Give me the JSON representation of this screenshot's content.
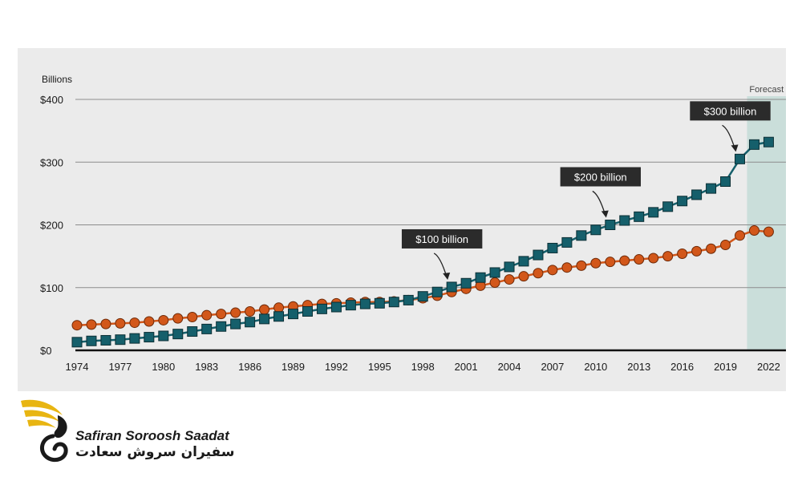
{
  "chart_data": {
    "type": "line",
    "units_label": "Billions",
    "x": [
      1974,
      1975,
      1976,
      1977,
      1978,
      1979,
      1980,
      1981,
      1982,
      1983,
      1984,
      1985,
      1986,
      1987,
      1988,
      1989,
      1990,
      1991,
      1992,
      1993,
      1994,
      1995,
      1996,
      1997,
      1998,
      1999,
      2000,
      2001,
      2002,
      2003,
      2004,
      2005,
      2006,
      2007,
      2008,
      2009,
      2010,
      2011,
      2012,
      2013,
      2014,
      2015,
      2016,
      2017,
      2018,
      2019,
      2020,
      2021,
      2022
    ],
    "x_ticks": [
      "1974",
      "1977",
      "1980",
      "1983",
      "1986",
      "1989",
      "1992",
      "1995",
      "1998",
      "2001",
      "2004",
      "2007",
      "2010",
      "2013",
      "2016",
      "2019",
      "2022"
    ],
    "y_ticks": [
      "$0",
      "$100",
      "$200",
      "$300",
      "$400"
    ],
    "ylim": [
      0,
      400
    ],
    "series": [
      {
        "marker": "square",
        "color": "#155f6b",
        "values": [
          13,
          15,
          16,
          17,
          19,
          21,
          23,
          26,
          30,
          34,
          38,
          42,
          45,
          50,
          54,
          58,
          62,
          66,
          69,
          72,
          74,
          75,
          77,
          80,
          86,
          93,
          101,
          107,
          116,
          124,
          133,
          142,
          152,
          163,
          172,
          183,
          192,
          200,
          207,
          213,
          220,
          229,
          238,
          248,
          258,
          269,
          305,
          328,
          332
        ]
      },
      {
        "marker": "circle",
        "color": "#d2571a",
        "values": [
          40,
          41,
          42,
          43,
          44,
          46,
          48,
          51,
          53,
          56,
          58,
          60,
          62,
          65,
          68,
          70,
          72,
          74,
          75,
          76,
          77,
          77,
          78,
          80,
          83,
          87,
          93,
          98,
          103,
          108,
          113,
          118,
          123,
          128,
          132,
          135,
          139,
          141,
          143,
          145,
          147,
          150,
          154,
          158,
          162,
          168,
          183,
          191,
          189
        ]
      }
    ],
    "annotations": [
      {
        "text": "$100 billion",
        "x": 2000,
        "y": 101
      },
      {
        "text": "$200 billion",
        "x": 2011,
        "y": 200
      },
      {
        "text": "$300 billion",
        "x": 2020,
        "y": 305
      }
    ],
    "forecast": {
      "label": "Forecast",
      "from": 2020.5,
      "to": 2023.2,
      "color": "#c7ddd8"
    },
    "grid": true,
    "legend": "none"
  },
  "logo": {
    "name_en": "Safiran Soroosh Saadat",
    "name_fa": "سفیران سروش سعادت"
  }
}
